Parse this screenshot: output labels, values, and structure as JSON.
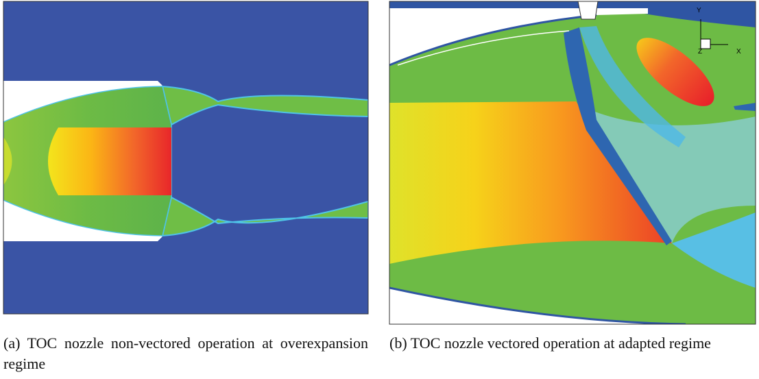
{
  "figure": {
    "panels": [
      {
        "caption": "(a) TOC nozzle non-vectored operation at overexpansion regime"
      },
      {
        "caption": "(b) TOC nozzle vectored operation at adapted regime",
        "axis_labels": {
          "y": "Y",
          "x": "X",
          "z": "Z"
        }
      }
    ]
  }
}
